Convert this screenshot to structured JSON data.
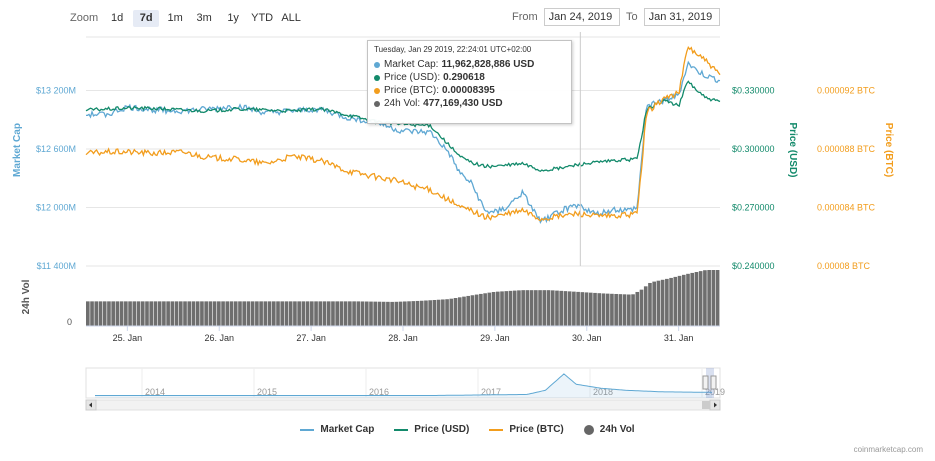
{
  "zoom": {
    "label": "Zoom",
    "buttons": [
      "1d",
      "7d",
      "1m",
      "3m",
      "1y",
      "YTD",
      "ALL"
    ],
    "active": "7d"
  },
  "range": {
    "from_label": "From",
    "from_value": "Jan 24, 2019",
    "to_label": "To",
    "to_value": "Jan 31, 2019"
  },
  "tooltip": {
    "header": "Tuesday, Jan 29 2019, 22:24:01 UTC+02:00",
    "rows": [
      {
        "label": "Market Cap:",
        "value": "11,962,828,886 USD",
        "color": "#5fa8d3"
      },
      {
        "label": "Price (USD):",
        "value": "0.290618",
        "color": "#138a6b"
      },
      {
        "label": "Price (BTC):",
        "value": "0.00008395",
        "color": "#f29d1d"
      },
      {
        "label": "24h Vol:",
        "value": "477,169,430 USD",
        "color": "#666666"
      }
    ]
  },
  "legend": [
    {
      "label": "Market Cap",
      "color": "#5fa8d3",
      "kind": "line"
    },
    {
      "label": "Price (USD)",
      "color": "#138a6b",
      "kind": "line"
    },
    {
      "label": "Price (BTC)",
      "color": "#f29d1d",
      "kind": "line"
    },
    {
      "label": "24h Vol",
      "color": "#666666",
      "kind": "dot"
    }
  ],
  "credit": "coinmarketcap.com",
  "chart_data": {
    "type": "line",
    "x_ticks": [
      "25. Jan",
      "26. Jan",
      "27. Jan",
      "28. Jan",
      "29. Jan",
      "30. Jan",
      "31. Jan"
    ],
    "x_range": [
      24.55,
      31.45
    ],
    "axes": {
      "market_cap": {
        "title": "Market Cap",
        "ticks": [
          "$13 200M",
          "$12 600M",
          "$12 000M",
          "$11 400M"
        ],
        "tick_values": [
          13200,
          12600,
          12000,
          11400
        ],
        "range": [
          11400,
          13800
        ],
        "color": "#5fa8d3"
      },
      "price_usd": {
        "title": "Price (USD)",
        "ticks": [
          "$0.330000",
          "$0.300000",
          "$0.270000",
          "$0.240000"
        ],
        "tick_values": [
          0.33,
          0.3,
          0.27,
          0.24
        ],
        "range": [
          0.24,
          0.36
        ],
        "color": "#138a6b"
      },
      "price_btc": {
        "title": "Price (BTC)",
        "ticks": [
          "0.000092 BTC",
          "0.000088 BTC",
          "0.000084 BTC",
          "0.00008 BTC"
        ],
        "tick_values": [
          9.2e-05,
          8.8e-05,
          8.4e-05,
          8e-05
        ],
        "range": [
          8e-05,
          9.6e-05
        ],
        "color": "#f29d1d"
      },
      "volume": {
        "title": "24h Vol",
        "ticks": [
          "0"
        ],
        "tick_values": [
          0
        ],
        "range": [
          0,
          1000
        ],
        "color": "#666666"
      }
    },
    "series": [
      {
        "name": "Market Cap",
        "axis": "market_cap",
        "x": [
          24.55,
          24.8,
          25.0,
          25.3,
          25.6,
          25.9,
          26.2,
          26.5,
          26.8,
          27.1,
          27.4,
          27.7,
          27.95,
          28.1,
          28.3,
          28.5,
          28.62,
          28.75,
          28.9,
          29.1,
          29.3,
          29.5,
          29.7,
          29.9,
          30.1,
          30.3,
          30.45,
          30.55,
          30.65,
          30.75,
          30.85,
          31.0,
          31.1,
          31.2,
          31.3,
          31.45
        ],
        "y": [
          12950,
          12960,
          13030,
          13000,
          12990,
          13010,
          13040,
          12970,
          12990,
          13010,
          12920,
          12880,
          12790,
          12780,
          12770,
          12560,
          12350,
          12240,
          11950,
          11980,
          12150,
          11850,
          11960,
          12030,
          11930,
          11980,
          11970,
          12000,
          13040,
          13080,
          13100,
          13150,
          13480,
          13400,
          13350,
          13300
        ]
      },
      {
        "name": "Price (USD)",
        "axis": "price_usd",
        "x": [
          24.55,
          24.8,
          25.0,
          25.3,
          25.6,
          25.9,
          26.2,
          26.5,
          26.8,
          27.1,
          27.4,
          27.7,
          27.95,
          28.1,
          28.3,
          28.5,
          28.62,
          28.75,
          28.9,
          29.1,
          29.3,
          29.5,
          29.7,
          29.9,
          30.1,
          30.3,
          30.45,
          30.55,
          30.65,
          30.75,
          30.85,
          31.0,
          31.1,
          31.2,
          31.3,
          31.45
        ],
        "y": [
          0.32,
          0.3205,
          0.321,
          0.3208,
          0.32,
          0.3195,
          0.3205,
          0.32,
          0.3195,
          0.3205,
          0.3175,
          0.314,
          0.313,
          0.3125,
          0.312,
          0.302,
          0.296,
          0.293,
          0.291,
          0.2915,
          0.2925,
          0.289,
          0.29,
          0.292,
          0.293,
          0.294,
          0.2945,
          0.295,
          0.32,
          0.323,
          0.325,
          0.322,
          0.335,
          0.33,
          0.326,
          0.324
        ]
      },
      {
        "name": "Price (BTC)",
        "axis": "price_btc",
        "x": [
          24.55,
          24.8,
          25.0,
          25.3,
          25.6,
          25.9,
          26.2,
          26.5,
          26.8,
          27.1,
          27.4,
          27.7,
          27.95,
          28.1,
          28.3,
          28.5,
          28.62,
          28.75,
          28.9,
          29.1,
          29.3,
          29.5,
          29.7,
          29.9,
          30.1,
          30.3,
          30.45,
          30.55,
          30.65,
          30.75,
          30.85,
          31.0,
          31.1,
          31.2,
          31.3,
          31.45
        ],
        "y": [
          8.77e-05,
          8.78e-05,
          8.78e-05,
          8.77e-05,
          8.78e-05,
          8.74e-05,
          8.73e-05,
          8.7e-05,
          8.75e-05,
          8.72e-05,
          8.65e-05,
          8.61e-05,
          8.58e-05,
          8.55e-05,
          8.52e-05,
          8.45e-05,
          8.4e-05,
          8.38e-05,
          8.33e-05,
          8.35e-05,
          8.38e-05,
          8.32e-05,
          8.34e-05,
          8.36e-05,
          8.34e-05,
          8.34e-05,
          8.35e-05,
          8.36e-05,
          9.05e-05,
          9.1e-05,
          9.15e-05,
          9.18e-05,
          9.5e-05,
          9.45e-05,
          9.4e-05,
          9.3e-05
        ]
      },
      {
        "name": "24h Vol",
        "axis": "volume",
        "kind": "bar",
        "x": [
          24.55,
          25.0,
          25.5,
          26.0,
          26.5,
          27.0,
          27.5,
          27.9,
          28.2,
          28.5,
          28.8,
          29.0,
          29.3,
          29.6,
          29.9,
          30.2,
          30.5,
          30.6,
          30.7,
          30.9,
          31.1,
          31.3,
          31.45
        ],
        "y": [
          440,
          440,
          440,
          440,
          440,
          440,
          440,
          430,
          450,
          480,
          560,
          610,
          640,
          640,
          610,
          580,
          560,
          650,
          780,
          850,
          930,
          1000,
          1000
        ]
      }
    ],
    "navigator": {
      "years": [
        "2014",
        "2015",
        "2016",
        "2017",
        "2018",
        "2019"
      ]
    },
    "grid": true,
    "legend_position": "bottom-center"
  }
}
